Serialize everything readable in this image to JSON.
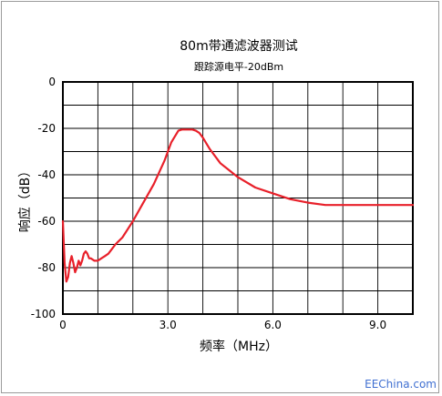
{
  "chart_data": {
    "type": "line",
    "title": "80m带通滤波器测试",
    "subtitle": "跟踪源电平-20dBm",
    "xlabel": "频率（MHz）",
    "ylabel": "响应（dB）",
    "xlim": [
      0,
      10
    ],
    "ylim": [
      -100,
      0
    ],
    "x_ticks": [
      0,
      3,
      6,
      9
    ],
    "x_tick_labels": [
      "0",
      "3.0",
      "6.0",
      "9.0"
    ],
    "y_ticks": [
      0,
      -20,
      -40,
      -60,
      -80,
      -100
    ],
    "y_tick_labels": [
      "0",
      "-20",
      "-40",
      "-60",
      "-80",
      "-100"
    ],
    "grid": true,
    "line_color": "#e8202a",
    "x": [
      0.0,
      0.05,
      0.1,
      0.15,
      0.2,
      0.25,
      0.3,
      0.35,
      0.4,
      0.45,
      0.5,
      0.55,
      0.6,
      0.65,
      0.7,
      0.75,
      0.8,
      0.9,
      1.0,
      1.1,
      1.2,
      1.3,
      1.4,
      1.5,
      1.7,
      2.0,
      2.3,
      2.6,
      2.9,
      3.1,
      3.3,
      3.4,
      3.5,
      3.6,
      3.7,
      3.8,
      3.9,
      4.0,
      4.2,
      4.5,
      5.0,
      5.5,
      6.0,
      6.5,
      7.0,
      7.5,
      8.0,
      9.0,
      10.0
    ],
    "y": [
      -60,
      -78,
      -86,
      -84,
      -78,
      -75,
      -78,
      -82,
      -80,
      -77,
      -79,
      -77,
      -74,
      -73,
      -74,
      -76,
      -76,
      -77,
      -77,
      -76,
      -75,
      -74,
      -72,
      -70,
      -67,
      -60,
      -52,
      -44,
      -34,
      -26,
      -21,
      -20.5,
      -20.5,
      -20.5,
      -20.5,
      -21,
      -22,
      -24,
      -29,
      -35,
      -41,
      -45.5,
      -48,
      -50.5,
      -52,
      -53,
      -53,
      -53,
      -53
    ]
  },
  "watermark": "EEChina.com"
}
